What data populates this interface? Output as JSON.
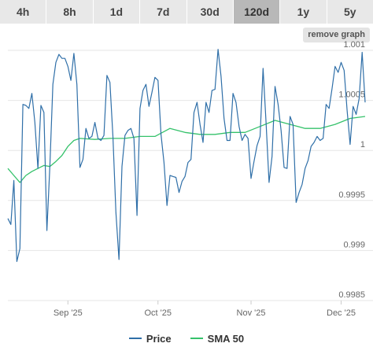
{
  "tabs": [
    {
      "label": "4h",
      "active": false
    },
    {
      "label": "8h",
      "active": false
    },
    {
      "label": "1d",
      "active": false
    },
    {
      "label": "7d",
      "active": false
    },
    {
      "label": "30d",
      "active": false
    },
    {
      "label": "120d",
      "active": true
    },
    {
      "label": "1y",
      "active": false
    },
    {
      "label": "5y",
      "active": false
    }
  ],
  "remove_graph_label": "remove graph",
  "colors": {
    "price": "#2f6fa8",
    "sma": "#35c26b",
    "grid": "#e6e6e6"
  },
  "chart_data": {
    "type": "line",
    "title": "",
    "xlabel": "",
    "ylabel": "",
    "ylim": [
      0.9985,
      1.001
    ],
    "yticks": [
      0.9985,
      0.999,
      0.9995,
      1,
      1.0005,
      1.001
    ],
    "ytick_labels": [
      "0.9985",
      "0.999",
      "0.9995",
      "1",
      "1.0005",
      "1.001"
    ],
    "x_start": "2025-08-12",
    "x_end": "2025-12-09",
    "xticks": [
      {
        "date": "2025-09-01",
        "label": "Sep '25"
      },
      {
        "date": "2025-10-01",
        "label": "Oct '25"
      },
      {
        "date": "2025-11-01",
        "label": "Nov '25"
      },
      {
        "date": "2025-12-01",
        "label": "Dec '25"
      }
    ],
    "grid": true,
    "legend_position": "bottom",
    "series": [
      {
        "name": "Price",
        "points": [
          [
            "2025-08-12",
            0.99932
          ],
          [
            "2025-08-13",
            0.99926
          ],
          [
            "2025-08-14",
            0.9997
          ],
          [
            "2025-08-15",
            0.99889
          ],
          [
            "2025-08-16",
            0.99902
          ],
          [
            "2025-08-17",
            1.00046
          ],
          [
            "2025-08-18",
            1.00045
          ],
          [
            "2025-08-19",
            1.00042
          ],
          [
            "2025-08-20",
            1.00057
          ],
          [
            "2025-08-21",
            1.00028
          ],
          [
            "2025-08-22",
            0.99982
          ],
          [
            "2025-08-23",
            1.00045
          ],
          [
            "2025-08-24",
            1.00038
          ],
          [
            "2025-08-25",
            0.9992
          ],
          [
            "2025-08-26",
            0.99985
          ],
          [
            "2025-08-27",
            1.00066
          ],
          [
            "2025-08-28",
            1.00088
          ],
          [
            "2025-08-29",
            1.00096
          ],
          [
            "2025-08-30",
            1.00092
          ],
          [
            "2025-08-31",
            1.00092
          ],
          [
            "2025-09-01",
            1.00084
          ],
          [
            "2025-09-02",
            1.0007
          ],
          [
            "2025-09-03",
            1.00097
          ],
          [
            "2025-09-04",
            1.00066
          ],
          [
            "2025-09-05",
            0.99983
          ],
          [
            "2025-09-06",
            0.99991
          ],
          [
            "2025-09-07",
            1.00022
          ],
          [
            "2025-09-08",
            1.00012
          ],
          [
            "2025-09-09",
            1.00014
          ],
          [
            "2025-09-10",
            1.00028
          ],
          [
            "2025-09-11",
            1.00012
          ],
          [
            "2025-09-12",
            1.0001
          ],
          [
            "2025-09-13",
            1.00015
          ],
          [
            "2025-09-14",
            1.00075
          ],
          [
            "2025-09-15",
            1.00068
          ],
          [
            "2025-09-16",
            1.00014
          ],
          [
            "2025-09-17",
            0.99938
          ],
          [
            "2025-09-18",
            0.99891
          ],
          [
            "2025-09-19",
            0.99984
          ],
          [
            "2025-09-20",
            1.00015
          ],
          [
            "2025-09-21",
            1.0002
          ],
          [
            "2025-09-22",
            1.00022
          ],
          [
            "2025-09-23",
            1.00012
          ],
          [
            "2025-09-24",
            0.99935
          ],
          [
            "2025-09-25",
            1.00042
          ],
          [
            "2025-09-26",
            1.0006
          ],
          [
            "2025-09-27",
            1.00066
          ],
          [
            "2025-09-28",
            1.00044
          ],
          [
            "2025-09-29",
            1.00058
          ],
          [
            "2025-09-30",
            1.00073
          ],
          [
            "2025-10-01",
            1.0007
          ],
          [
            "2025-10-02",
            1.00016
          ],
          [
            "2025-10-03",
            0.99988
          ],
          [
            "2025-10-04",
            0.99945
          ],
          [
            "2025-10-05",
            0.99975
          ],
          [
            "2025-10-06",
            0.99974
          ],
          [
            "2025-10-07",
            0.99973
          ],
          [
            "2025-10-08",
            0.99958
          ],
          [
            "2025-10-09",
            0.99969
          ],
          [
            "2025-10-10",
            0.99974
          ],
          [
            "2025-10-11",
            0.99988
          ],
          [
            "2025-10-12",
            0.99991
          ],
          [
            "2025-10-13",
            1.00038
          ],
          [
            "2025-10-14",
            1.00048
          ],
          [
            "2025-10-15",
            1.00026
          ],
          [
            "2025-10-16",
            1.00008
          ],
          [
            "2025-10-17",
            1.00048
          ],
          [
            "2025-10-18",
            1.00038
          ],
          [
            "2025-10-19",
            1.0006
          ],
          [
            "2025-10-20",
            1.00061
          ],
          [
            "2025-10-21",
            1.00101
          ],
          [
            "2025-10-22",
            1.00074
          ],
          [
            "2025-10-23",
            1.00032
          ],
          [
            "2025-10-24",
            1.0001
          ],
          [
            "2025-10-25",
            1.0001
          ],
          [
            "2025-10-26",
            1.00057
          ],
          [
            "2025-10-27",
            1.00048
          ],
          [
            "2025-10-28",
            1.00024
          ],
          [
            "2025-10-29",
            1.0001
          ],
          [
            "2025-10-30",
            1.00016
          ],
          [
            "2025-10-31",
            1.00012
          ],
          [
            "2025-11-01",
            0.99972
          ],
          [
            "2025-11-02",
            0.99989
          ],
          [
            "2025-11-03",
            1.00005
          ],
          [
            "2025-11-04",
            1.00014
          ],
          [
            "2025-11-05",
            1.00082
          ],
          [
            "2025-11-06",
            1.00028
          ],
          [
            "2025-11-07",
            0.99968
          ],
          [
            "2025-11-08",
            0.99994
          ],
          [
            "2025-11-09",
            1.00064
          ],
          [
            "2025-11-10",
            1.00046
          ],
          [
            "2025-11-11",
            1.0002
          ],
          [
            "2025-11-12",
            0.99983
          ],
          [
            "2025-11-13",
            0.99982
          ],
          [
            "2025-11-14",
            1.00034
          ],
          [
            "2025-11-15",
            1.00026
          ],
          [
            "2025-11-16",
            0.99948
          ],
          [
            "2025-11-17",
            0.99958
          ],
          [
            "2025-11-18",
            0.99966
          ],
          [
            "2025-11-19",
            0.99982
          ],
          [
            "2025-11-20",
            0.9999
          ],
          [
            "2025-11-21",
            1.00004
          ],
          [
            "2025-11-22",
            1.00008
          ],
          [
            "2025-11-23",
            1.00014
          ],
          [
            "2025-11-24",
            1.0001
          ],
          [
            "2025-11-25",
            1.00012
          ],
          [
            "2025-11-26",
            1.00046
          ],
          [
            "2025-11-27",
            1.00042
          ],
          [
            "2025-11-28",
            1.00062
          ],
          [
            "2025-11-29",
            1.00084
          ],
          [
            "2025-11-30",
            1.00078
          ],
          [
            "2025-12-01",
            1.00088
          ],
          [
            "2025-12-02",
            1.0008
          ],
          [
            "2025-12-03",
            1.0004
          ],
          [
            "2025-12-04",
            1.00006
          ],
          [
            "2025-12-05",
            1.00044
          ],
          [
            "2025-12-06",
            1.00036
          ],
          [
            "2025-12-07",
            1.00052
          ],
          [
            "2025-12-08",
            1.00098
          ],
          [
            "2025-12-09",
            1.00048
          ]
        ]
      },
      {
        "name": "SMA 50",
        "points": [
          [
            "2025-08-12",
            0.99982
          ],
          [
            "2025-08-14",
            0.99975
          ],
          [
            "2025-08-16",
            0.99968
          ],
          [
            "2025-08-18",
            0.99975
          ],
          [
            "2025-08-20",
            0.99979
          ],
          [
            "2025-08-22",
            0.99982
          ],
          [
            "2025-08-24",
            0.99985
          ],
          [
            "2025-08-26",
            0.99984
          ],
          [
            "2025-08-28",
            0.99989
          ],
          [
            "2025-08-30",
            0.99995
          ],
          [
            "2025-09-01",
            1.00004
          ],
          [
            "2025-09-03",
            1.0001
          ],
          [
            "2025-09-05",
            1.00012
          ],
          [
            "2025-09-10",
            1.00011
          ],
          [
            "2025-09-15",
            1.00012
          ],
          [
            "2025-09-20",
            1.00012
          ],
          [
            "2025-09-25",
            1.00014
          ],
          [
            "2025-09-30",
            1.00014
          ],
          [
            "2025-10-05",
            1.00022
          ],
          [
            "2025-10-10",
            1.00018
          ],
          [
            "2025-10-15",
            1.00016
          ],
          [
            "2025-10-20",
            1.00016
          ],
          [
            "2025-10-25",
            1.00018
          ],
          [
            "2025-10-30",
            1.00018
          ],
          [
            "2025-11-04",
            1.00024
          ],
          [
            "2025-11-09",
            1.0003
          ],
          [
            "2025-11-14",
            1.00026
          ],
          [
            "2025-11-19",
            1.00022
          ],
          [
            "2025-11-24",
            1.00022
          ],
          [
            "2025-11-29",
            1.00026
          ],
          [
            "2025-12-04",
            1.00032
          ],
          [
            "2025-12-09",
            1.00034
          ]
        ]
      }
    ]
  }
}
